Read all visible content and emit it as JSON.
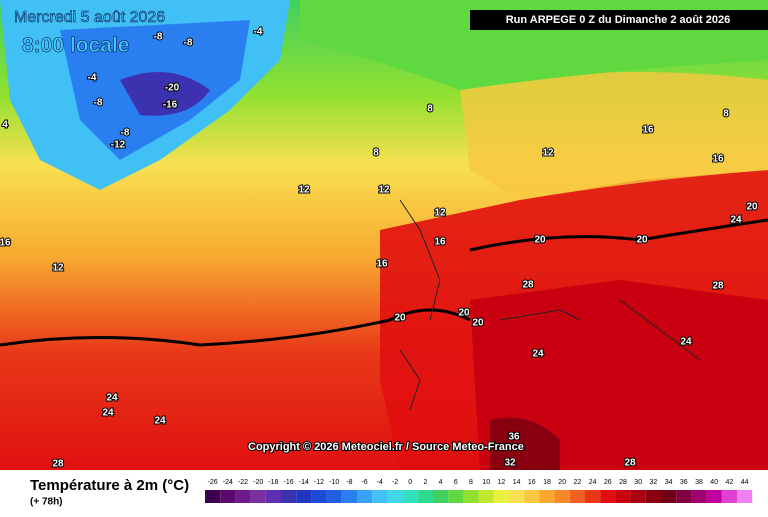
{
  "header": {
    "date": "Mercredi 5 août 2026",
    "time": "8:00 locale",
    "run": "Run ARPEGE 0 Z du Dimanche 2 août 2026"
  },
  "copyright": "Copyright © 2026 Meteociel.fr / Source Meteo-France",
  "legend": {
    "title": "Température à 2m (°C)",
    "lead": "(+ 78h)",
    "scale": [
      -26,
      -24,
      -22,
      -20,
      -18,
      -16,
      -14,
      -12,
      -10,
      -8,
      -6,
      -4,
      -2,
      0,
      2,
      4,
      6,
      8,
      10,
      12,
      14,
      16,
      18,
      20,
      22,
      24,
      26,
      28,
      30,
      32,
      34,
      36,
      38,
      40,
      42,
      44
    ],
    "colors": [
      "#3d0050",
      "#5a0a6e",
      "#6e1a8a",
      "#7a2fa0",
      "#5e2fb0",
      "#3c32b0",
      "#2035c0",
      "#1e4bd6",
      "#2060e0",
      "#2a7ff0",
      "#3aa0f5",
      "#40c0f5",
      "#40d8e8",
      "#30e0c0",
      "#30d890",
      "#40d060",
      "#60d840",
      "#90e030",
      "#c0e830",
      "#e8f040",
      "#f8e050",
      "#f8c840",
      "#f8a830",
      "#f88828",
      "#f06020",
      "#e83818",
      "#e01010",
      "#c80010",
      "#a80010",
      "#880010",
      "#700018",
      "#800040",
      "#a00070",
      "#c000a0",
      "#e040d0",
      "#f080f0"
    ]
  },
  "map_labels": [
    "-20",
    "-16",
    "-12",
    "-8",
    "-8",
    "-8",
    "-8",
    "-4",
    "-4",
    "4",
    "8",
    "8",
    "12",
    "12",
    "12",
    "16",
    "16",
    "16",
    "12",
    "20",
    "20",
    "20",
    "20",
    "20",
    "24",
    "24",
    "24",
    "24",
    "28",
    "28",
    "28",
    "36",
    "32",
    "16",
    "24",
    "20",
    "28",
    "24",
    "12",
    "16",
    "8"
  ]
}
